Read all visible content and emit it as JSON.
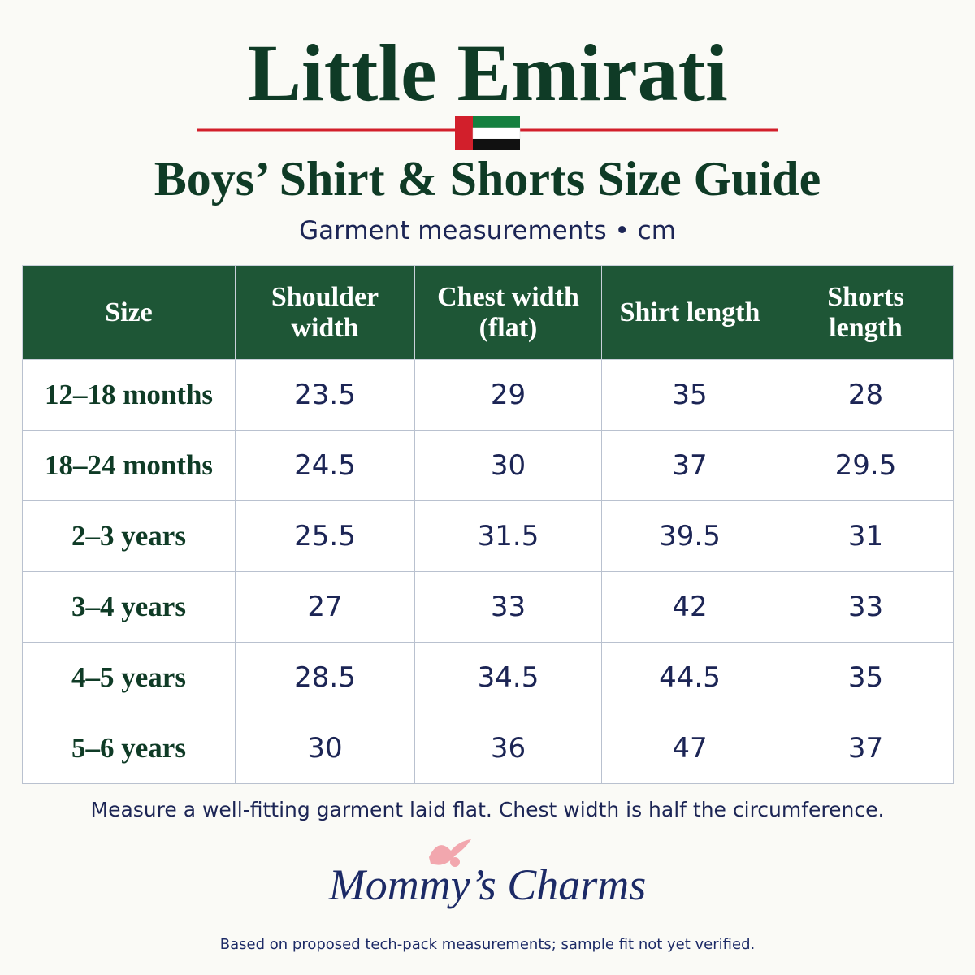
{
  "header": {
    "title": "Little Emirati",
    "subtitle": "Boys’ Shirt & Shorts Size Guide",
    "units": "Garment measurements • cm"
  },
  "table": {
    "columns": [
      "Size",
      "Shoulder width",
      "Chest width (flat)",
      "Shirt length",
      "Shorts length"
    ],
    "rows": [
      [
        "12–18 months",
        "23.5",
        "29",
        "35",
        "28"
      ],
      [
        "18–24 months",
        "24.5",
        "30",
        "37",
        "29.5"
      ],
      [
        "2–3 years",
        "25.5",
        "31.5",
        "39.5",
        "31"
      ],
      [
        "3–4 years",
        "27",
        "33",
        "42",
        "33"
      ],
      [
        "4–5 years",
        "28.5",
        "34.5",
        "44.5",
        "35"
      ],
      [
        "5–6 years",
        "30",
        "36",
        "47",
        "37"
      ]
    ]
  },
  "note": "Measure a well-fitting garment laid flat. Chest width is half the circumference.",
  "brand": "Mommy’s Charms",
  "disclaimer": "Based on proposed tech-pack measurements; sample fit not yet verified."
}
